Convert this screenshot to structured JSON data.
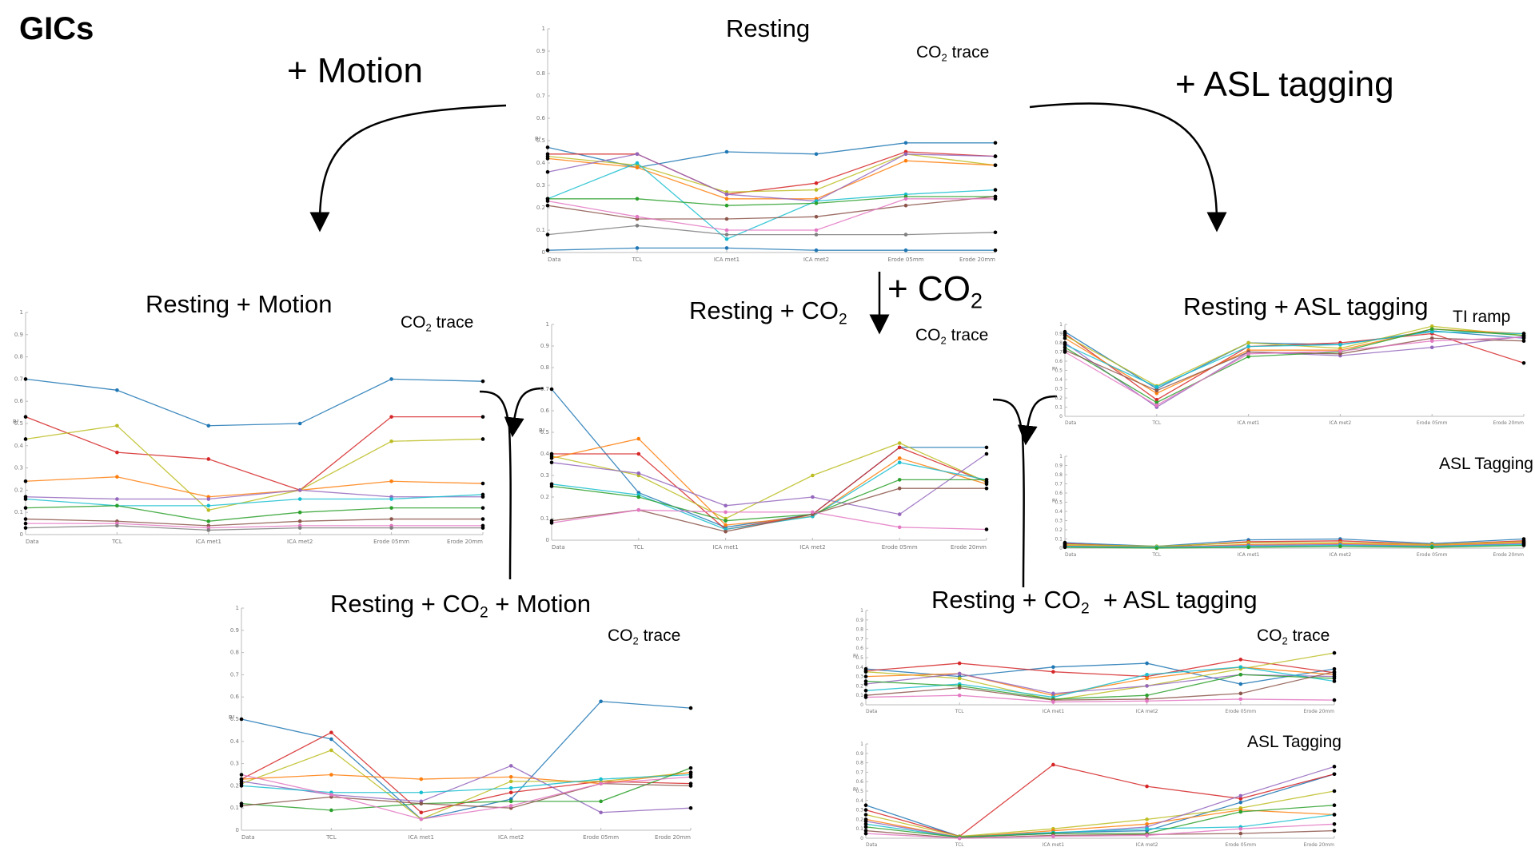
{
  "page_title": "GICs",
  "steps": {
    "motion": "+ Motion",
    "asl": "+ ASL tagging",
    "co2_prefix": "+ CO",
    "co2_sub": "2"
  },
  "panel_labels": {
    "resting": "Resting",
    "resting_motion": "Resting + Motion",
    "resting_co2_prefix": "Resting + CO",
    "resting_co2_sub": "2",
    "resting_asl": "Resting + ASL tagging",
    "rcm_prefix": "Resting + CO",
    "rcm_sub": "2",
    "rcm_suffix": "+ Motion",
    "rca_prefix": "Resting + CO",
    "rca_sub": "2",
    "rca_suffix": "+ ASL tagging"
  },
  "annotations": {
    "co2_trace_prefix": "CO",
    "co2_trace_sub": "2",
    "co2_trace_suffix": "trace",
    "ti_ramp": "TI ramp",
    "asl_tagging": "ASL Tagging"
  },
  "colors": [
    "#1f77b4",
    "#d62728",
    "#bcbd22",
    "#ff7f0e",
    "#9467bd",
    "#17becf",
    "#2ca02c",
    "#8c564b",
    "#e377c2",
    "#7f7f7f"
  ],
  "chart_data": [
    {
      "id": "resting",
      "type": "line",
      "ylabel": "R²",
      "categories": [
        "Data",
        "TCL",
        "ICA met1",
        "ICA met2",
        "Erode 05mm",
        "Erode 20mm"
      ],
      "yticks": [
        "0",
        "0.1",
        "0.2",
        "0.3",
        "0.4",
        "0.5",
        "0.6",
        "0.7",
        "0.8",
        "0.9",
        "1"
      ],
      "ylim": [
        0,
        1
      ],
      "series": [
        {
          "values": [
            0.47,
            0.38,
            0.45,
            0.44,
            0.49,
            0.49
          ]
        },
        {
          "values": [
            0.44,
            0.44,
            0.26,
            0.31,
            0.45,
            0.43
          ]
        },
        {
          "values": [
            0.43,
            0.39,
            0.27,
            0.28,
            0.44,
            0.39
          ]
        },
        {
          "values": [
            0.42,
            0.38,
            0.24,
            0.24,
            0.41,
            0.39
          ]
        },
        {
          "values": [
            0.36,
            0.44,
            0.26,
            0.23,
            0.44,
            0.43
          ]
        },
        {
          "values": [
            0.24,
            0.4,
            0.06,
            0.23,
            0.26,
            0.28
          ]
        },
        {
          "values": [
            0.24,
            0.24,
            0.21,
            0.22,
            0.25,
            0.25
          ]
        },
        {
          "values": [
            0.21,
            0.15,
            0.15,
            0.16,
            0.21,
            0.25
          ]
        },
        {
          "values": [
            0.23,
            0.16,
            0.1,
            0.1,
            0.24,
            0.24
          ]
        },
        {
          "values": [
            0.08,
            0.12,
            0.08,
            0.08,
            0.08,
            0.09
          ]
        },
        {
          "values": [
            0.01,
            0.02,
            0.02,
            0.01,
            0.01,
            0.01
          ]
        }
      ]
    },
    {
      "id": "resting_motion",
      "type": "line",
      "ylabel": "R²",
      "categories": [
        "Data",
        "TCL",
        "ICA met1",
        "ICA met2",
        "Erode 05mm",
        "Erode 20mm"
      ],
      "yticks": [
        "0",
        "0.1",
        "0.2",
        "0.3",
        "0.4",
        "0.5",
        "0.6",
        "0.7",
        "0.8",
        "0.9",
        "1"
      ],
      "ylim": [
        0,
        1
      ],
      "series": [
        {
          "values": [
            0.7,
            0.65,
            0.49,
            0.5,
            0.7,
            0.69
          ]
        },
        {
          "values": [
            0.53,
            0.37,
            0.34,
            0.2,
            0.53,
            0.53
          ]
        },
        {
          "values": [
            0.43,
            0.49,
            0.11,
            0.2,
            0.42,
            0.43
          ]
        },
        {
          "values": [
            0.24,
            0.26,
            0.17,
            0.2,
            0.24,
            0.23
          ]
        },
        {
          "values": [
            0.17,
            0.16,
            0.16,
            0.2,
            0.17,
            0.17
          ]
        },
        {
          "values": [
            0.16,
            0.13,
            0.13,
            0.16,
            0.16,
            0.18
          ]
        },
        {
          "values": [
            0.12,
            0.13,
            0.06,
            0.1,
            0.12,
            0.12
          ]
        },
        {
          "values": [
            0.07,
            0.06,
            0.04,
            0.06,
            0.07,
            0.07
          ]
        },
        {
          "values": [
            0.05,
            0.05,
            0.03,
            0.04,
            0.04,
            0.04
          ]
        },
        {
          "values": [
            0.03,
            0.04,
            0.02,
            0.03,
            0.03,
            0.03
          ]
        }
      ]
    },
    {
      "id": "resting_co2",
      "type": "line",
      "ylabel": "R²",
      "categories": [
        "Data",
        "TCL",
        "ICA met1",
        "ICA met2",
        "Erode 05mm",
        "Erode 20mm"
      ],
      "yticks": [
        "0",
        "0.1",
        "0.2",
        "0.3",
        "0.4",
        "0.5",
        "0.6",
        "0.7",
        "0.8",
        "0.9",
        "1"
      ],
      "ylim": [
        0,
        1
      ],
      "series": [
        {
          "values": [
            0.7,
            0.22,
            0.06,
            0.12,
            0.43,
            0.43
          ]
        },
        {
          "values": [
            0.4,
            0.4,
            0.05,
            0.12,
            0.43,
            0.27
          ]
        },
        {
          "values": [
            0.39,
            0.3,
            0.1,
            0.3,
            0.45,
            0.27
          ]
        },
        {
          "values": [
            0.38,
            0.47,
            0.07,
            0.11,
            0.38,
            0.26
          ]
        },
        {
          "values": [
            0.36,
            0.31,
            0.16,
            0.2,
            0.12,
            0.4
          ]
        },
        {
          "values": [
            0.26,
            0.21,
            0.05,
            0.11,
            0.36,
            0.28
          ]
        },
        {
          "values": [
            0.25,
            0.2,
            0.09,
            0.12,
            0.28,
            0.28
          ]
        },
        {
          "values": [
            0.09,
            0.14,
            0.04,
            0.12,
            0.24,
            0.24
          ]
        },
        {
          "values": [
            0.08,
            0.14,
            0.13,
            0.13,
            0.06,
            0.05
          ]
        }
      ]
    },
    {
      "id": "resting_asl",
      "type": "line",
      "ylabel": "R²",
      "categories": [
        "Data",
        "TCL",
        "ICA met1",
        "ICA met2",
        "Erode 05mm",
        "Erode 20mm"
      ],
      "yticks": [
        "0",
        "0.1",
        "0.2",
        "0.3",
        "0.4",
        "0.5",
        "0.6",
        "0.7",
        "0.8",
        "0.9",
        "1"
      ],
      "ylim": [
        0,
        1
      ],
      "series": [
        {
          "values": [
            0.92,
            0.3,
            0.8,
            0.78,
            0.93,
            0.85
          ]
        },
        {
          "values": [
            0.9,
            0.18,
            0.76,
            0.8,
            0.9,
            0.58
          ]
        },
        {
          "values": [
            0.88,
            0.33,
            0.8,
            0.74,
            0.98,
            0.88
          ]
        },
        {
          "values": [
            0.85,
            0.25,
            0.72,
            0.72,
            0.95,
            0.9
          ]
        },
        {
          "values": [
            0.8,
            0.1,
            0.7,
            0.66,
            0.75,
            0.87
          ]
        },
        {
          "values": [
            0.78,
            0.32,
            0.76,
            0.78,
            0.92,
            0.9
          ]
        },
        {
          "values": [
            0.75,
            0.15,
            0.65,
            0.7,
            0.95,
            0.88
          ]
        },
        {
          "values": [
            0.72,
            0.28,
            0.7,
            0.68,
            0.85,
            0.82
          ]
        },
        {
          "values": [
            0.7,
            0.12,
            0.68,
            0.71,
            0.82,
            0.86
          ]
        }
      ]
    },
    {
      "id": "asl_tagging_1",
      "type": "line",
      "ylabel": "R²",
      "categories": [
        "Data",
        "TCL",
        "ICA met1",
        "ICA met2",
        "Erode 05mm",
        "Erode 20mm"
      ],
      "yticks": [
        "0",
        "0.1",
        "0.2",
        "0.3",
        "0.4",
        "0.5",
        "0.6",
        "0.7",
        "0.8",
        "0.9",
        "1"
      ],
      "ylim": [
        0,
        1
      ],
      "series": [
        {
          "values": [
            0.06,
            0.02,
            0.09,
            0.1,
            0.05,
            0.1
          ]
        },
        {
          "values": [
            0.05,
            0.01,
            0.07,
            0.08,
            0.04,
            0.08
          ]
        },
        {
          "values": [
            0.04,
            0.02,
            0.06,
            0.06,
            0.04,
            0.07
          ]
        },
        {
          "values": [
            0.03,
            0.01,
            0.04,
            0.05,
            0.03,
            0.06
          ]
        },
        {
          "values": [
            0.02,
            0.01,
            0.03,
            0.04,
            0.02,
            0.05
          ]
        },
        {
          "values": [
            0.02,
            0.01,
            0.02,
            0.03,
            0.02,
            0.04
          ]
        },
        {
          "values": [
            0.01,
            0.0,
            0.01,
            0.02,
            0.01,
            0.03
          ]
        }
      ]
    },
    {
      "id": "resting_co2_motion",
      "type": "line",
      "ylabel": "R²",
      "categories": [
        "Data",
        "TCL",
        "ICA met1",
        "ICA met2",
        "Erode 05mm",
        "Erode 20mm"
      ],
      "yticks": [
        "0",
        "0.1",
        "0.2",
        "0.3",
        "0.4",
        "0.5",
        "0.6",
        "0.7",
        "0.8",
        "0.9",
        "1"
      ],
      "ylim": [
        0,
        1
      ],
      "series": [
        {
          "values": [
            0.5,
            0.41,
            0.05,
            0.14,
            0.58,
            0.55
          ]
        },
        {
          "values": [
            0.23,
            0.44,
            0.08,
            0.17,
            0.22,
            0.21
          ]
        },
        {
          "values": [
            0.21,
            0.36,
            0.05,
            0.22,
            0.22,
            0.26
          ]
        },
        {
          "values": [
            0.23,
            0.25,
            0.23,
            0.24,
            0.21,
            0.26
          ]
        },
        {
          "values": [
            0.22,
            0.16,
            0.13,
            0.29,
            0.08,
            0.1
          ]
        },
        {
          "values": [
            0.2,
            0.17,
            0.17,
            0.19,
            0.23,
            0.25
          ]
        },
        {
          "values": [
            0.12,
            0.09,
            0.12,
            0.13,
            0.13,
            0.28
          ]
        },
        {
          "values": [
            0.11,
            0.15,
            0.12,
            0.1,
            0.21,
            0.2
          ]
        },
        {
          "values": [
            0.25,
            0.16,
            0.05,
            0.11,
            0.21,
            0.24
          ]
        }
      ]
    },
    {
      "id": "resting_co2_asl_1",
      "type": "line",
      "ylabel": "R²",
      "categories": [
        "Data",
        "TCL",
        "ICA met1",
        "ICA met2",
        "Erode 05mm",
        "Erode 20mm"
      ],
      "yticks": [
        "0",
        "0.1",
        "0.2",
        "0.3",
        "0.4",
        "0.5",
        "0.6",
        "0.7",
        "0.8",
        "0.9",
        "1"
      ],
      "ylim": [
        0,
        1
      ],
      "series": [
        {
          "values": [
            0.38,
            0.3,
            0.4,
            0.44,
            0.22,
            0.38
          ]
        },
        {
          "values": [
            0.36,
            0.44,
            0.35,
            0.3,
            0.48,
            0.34
          ]
        },
        {
          "values": [
            0.35,
            0.28,
            0.05,
            0.2,
            0.38,
            0.55
          ]
        },
        {
          "values": [
            0.3,
            0.33,
            0.1,
            0.28,
            0.4,
            0.32
          ]
        },
        {
          "values": [
            0.22,
            0.33,
            0.12,
            0.2,
            0.32,
            0.3
          ]
        },
        {
          "values": [
            0.15,
            0.22,
            0.08,
            0.32,
            0.4,
            0.25
          ]
        },
        {
          "values": [
            0.25,
            0.2,
            0.06,
            0.1,
            0.32,
            0.28
          ]
        },
        {
          "values": [
            0.1,
            0.18,
            0.05,
            0.06,
            0.12,
            0.35
          ]
        },
        {
          "values": [
            0.08,
            0.1,
            0.03,
            0.04,
            0.06,
            0.05
          ]
        }
      ]
    },
    {
      "id": "asl_tagging_2",
      "type": "line",
      "ylabel": "R²",
      "categories": [
        "Data",
        "TCL",
        "ICA met1",
        "ICA met2",
        "Erode 05mm",
        "Erode 20mm"
      ],
      "yticks": [
        "0",
        "0.1",
        "0.2",
        "0.3",
        "0.4",
        "0.5",
        "0.6",
        "0.7",
        "0.8",
        "0.9",
        "1"
      ],
      "ylim": [
        0,
        1
      ],
      "series": [
        {
          "values": [
            0.35,
            0.02,
            0.06,
            0.08,
            0.38,
            0.68
          ]
        },
        {
          "values": [
            0.3,
            0.02,
            0.78,
            0.55,
            0.42,
            0.68
          ]
        },
        {
          "values": [
            0.25,
            0.02,
            0.1,
            0.2,
            0.32,
            0.5
          ]
        },
        {
          "values": [
            0.2,
            0.01,
            0.08,
            0.15,
            0.3,
            0.25
          ]
        },
        {
          "values": [
            0.18,
            0.01,
            0.05,
            0.12,
            0.45,
            0.76
          ]
        },
        {
          "values": [
            0.15,
            0.01,
            0.06,
            0.1,
            0.12,
            0.25
          ]
        },
        {
          "values": [
            0.12,
            0.01,
            0.05,
            0.05,
            0.28,
            0.35
          ]
        },
        {
          "values": [
            0.08,
            0.0,
            0.03,
            0.04,
            0.05,
            0.08
          ]
        },
        {
          "values": [
            0.05,
            0.0,
            0.02,
            0.03,
            0.1,
            0.15
          ]
        }
      ]
    }
  ]
}
